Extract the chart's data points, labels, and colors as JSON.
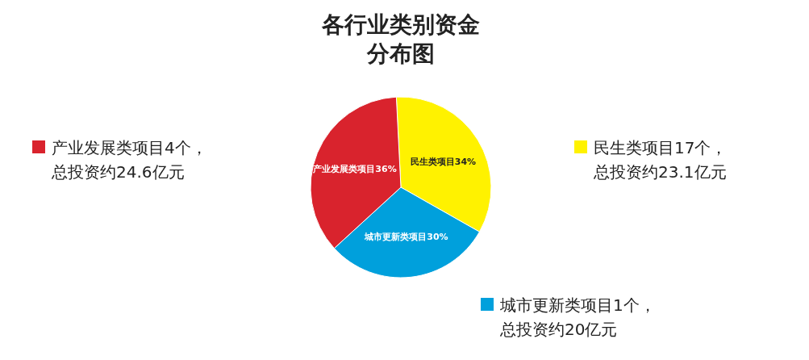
{
  "chart_data": {
    "type": "pie",
    "title": "各行业类别资金分布图",
    "legend": "left",
    "categories": [
      "产业发展类项目4个，总投资约24.6亿元",
      "民生类项目17个，总投资约23.1亿元",
      "城市更新类项目1个，总投资约20亿元"
    ],
    "values": [
      36,
      34,
      30
    ],
    "colors": [
      "#d9232d",
      "#fff200",
      "#00a0dc"
    ],
    "value_labels": [
      "产业发展类项目36%",
      "民生类项目34%",
      "城市更新类项目30%"
    ]
  }
}
